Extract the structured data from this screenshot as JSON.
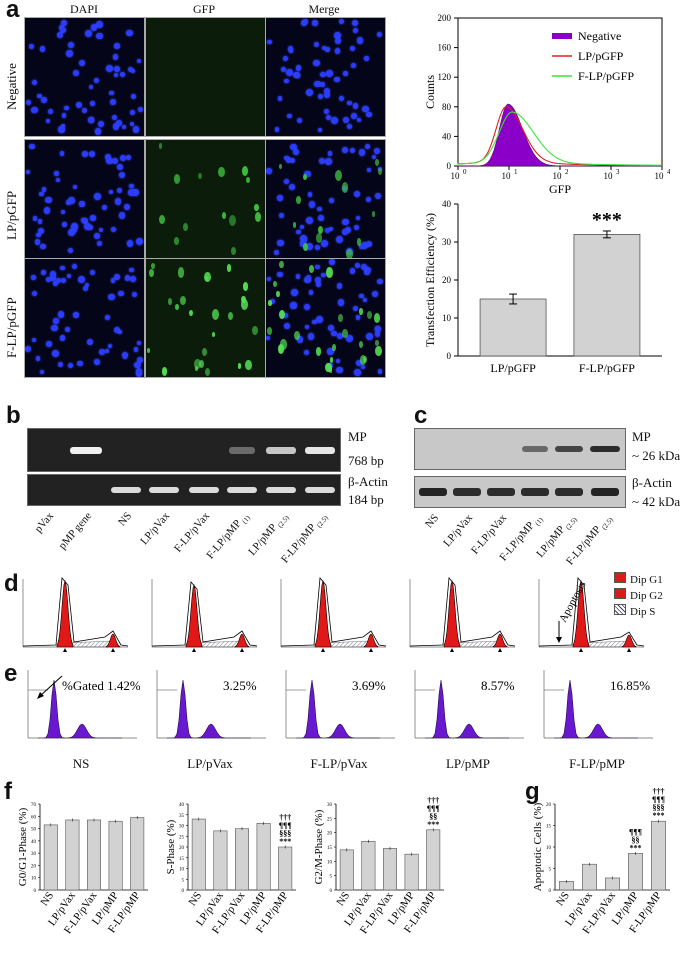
{
  "panel_letters": {
    "a": "a",
    "b": "b",
    "c": "c",
    "d": "d",
    "e": "e",
    "f": "f",
    "g": "g"
  },
  "panel_a": {
    "col_headers": [
      "DAPI",
      "GFP",
      "Merge"
    ],
    "row_headers": [
      "Negative",
      "LP/pGFP",
      "F-LP/pGFP"
    ],
    "histogram": {
      "ylabel": "Counts",
      "xlabel": "GFP",
      "yticks": [
        "0",
        "40",
        "80",
        "120",
        "160",
        "200"
      ],
      "xticks": [
        "10",
        "10",
        "10",
        "10",
        "10"
      ],
      "xtick_exp": [
        "0",
        "1",
        "2",
        "3",
        "4"
      ],
      "legend": [
        {
          "name": "Negative",
          "color": "#8a00c8"
        },
        {
          "name": "LP/pGFP",
          "color": "#e02020"
        },
        {
          "name": "F-LP/pGFP",
          "color": "#40e040"
        }
      ]
    },
    "efficiency": {
      "ylabel": "Transfection Efficiency (%)",
      "yticks": [
        "0",
        "10",
        "20",
        "30",
        "40"
      ],
      "significance": "***"
    }
  },
  "panel_b": {
    "bands": [
      "MP",
      "768 bp",
      "β-Actin",
      "184 bp"
    ],
    "lanes": [
      "pVax",
      "pMP gene",
      "NS",
      "LP/pVax",
      "F-LP/pVax",
      "F-LP/pMP",
      "LP/pMP",
      "F-LP/pMP"
    ],
    "lane_subs": [
      "",
      "",
      "",
      "",
      "",
      "(1)",
      "(2.5)",
      "(2.5)"
    ]
  },
  "panel_c": {
    "bands": [
      "MP",
      "~ 26 kDa",
      "β-Actin",
      "~ 42 kDa"
    ],
    "lanes": [
      "NS",
      "LP/pVax",
      "F-LP/pVax",
      "F-LP/pMP",
      "LP/pMP",
      "F-LP/pMP"
    ],
    "lane_subs": [
      "",
      "",
      "",
      "(1)",
      "(2.5)",
      "(2.5)"
    ]
  },
  "panel_d": {
    "legend": [
      "Dip G1",
      "Dip G2",
      "Dip S"
    ],
    "apoptosis_label": "Apoptosis"
  },
  "panel_e": {
    "gated": [
      "%Gated 1.42%",
      "3.25%",
      "3.69%",
      "8.57%",
      "16.85%"
    ],
    "groups": [
      "NS",
      "LP/pVax",
      "F-LP/pVax",
      "LP/pMP",
      "F-LP/pMP"
    ]
  },
  "chart_data": [
    {
      "type": "bar",
      "title": "",
      "ylabel": "Transfection Efficiency (%)",
      "categories": [
        "LP/pGFP",
        "F-LP/pGFP"
      ],
      "values": [
        15,
        32
      ],
      "errors": [
        1.3,
        0.9
      ],
      "ylim": [
        0,
        40
      ],
      "annotations": [
        "",
        "***"
      ]
    },
    {
      "type": "bar",
      "ylabel": "G0/G1-Phase (%)",
      "categories": [
        "NS",
        "LP/pVax",
        "F-LP/pVax",
        "LP/pMP",
        "F-LP/pMP"
      ],
      "values": [
        53,
        57,
        57,
        56,
        59
      ],
      "ylim": [
        0,
        70
      ],
      "yticks": [
        "0",
        "10",
        "20",
        "30",
        "40",
        "50",
        "60",
        "70"
      ]
    },
    {
      "type": "bar",
      "ylabel": "S-Phase (%)",
      "categories": [
        "NS",
        "LP/pVax",
        "F-LP/pVax",
        "LP/pMP",
        "F-LP/pMP"
      ],
      "values": [
        33,
        27.5,
        28.5,
        31,
        20
      ],
      "ylim": [
        0,
        40
      ],
      "yticks": [
        "0",
        "5",
        "10",
        "15",
        "20",
        "25",
        "30",
        "35",
        "40"
      ],
      "annotations": [
        "",
        "",
        "",
        "",
        "†††\n¶¶¶\n§§§\n***"
      ]
    },
    {
      "type": "bar",
      "ylabel": "G2/M-Phase (%)",
      "categories": [
        "NS",
        "LP/pVax",
        "F-LP/pVax",
        "LP/pMP",
        "F-LP/pMP"
      ],
      "values": [
        14,
        17,
        14.5,
        12.5,
        21
      ],
      "ylim": [
        0,
        30
      ],
      "yticks": [
        "0",
        "5",
        "10",
        "15",
        "20",
        "25",
        "30"
      ],
      "annotations": [
        "",
        "",
        "",
        "",
        "†††\n¶¶¶\n§§\n***"
      ]
    },
    {
      "type": "bar",
      "ylabel": "Apoptotic Cells (%)",
      "categories": [
        "NS",
        "LP/pVax",
        "F-LP/pVax",
        "LP/pMP",
        "F-LP/pMP"
      ],
      "values": [
        2,
        6,
        2.8,
        8.5,
        16
      ],
      "ylim": [
        0,
        20
      ],
      "yticks": [
        "0",
        "5",
        "10",
        "15",
        "20"
      ],
      "annotations": [
        "",
        "",
        "",
        "¶¶¶\n§§\n***",
        "†††\n¶¶¶\n§§§\n***"
      ]
    }
  ]
}
